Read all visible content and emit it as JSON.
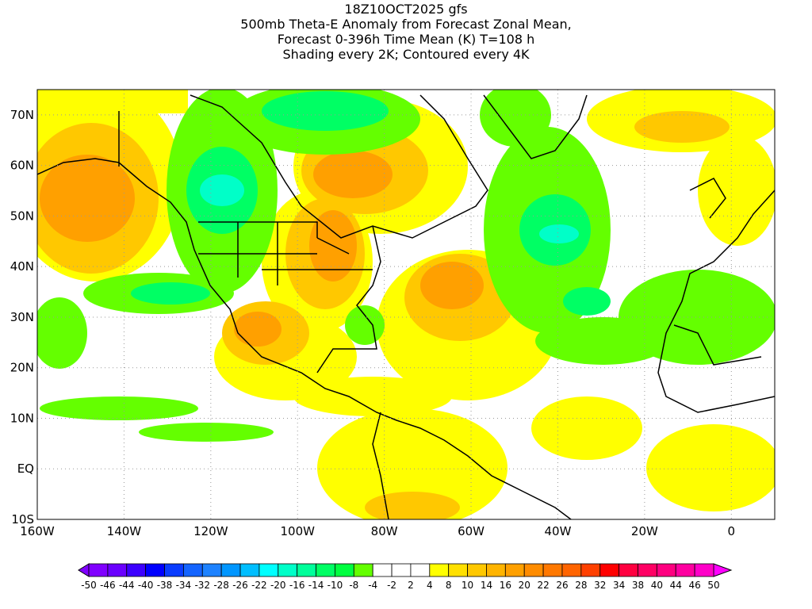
{
  "title": {
    "line1": "18Z10OCT2025 gfs",
    "line2": "500mb Theta-E Anomaly from Forecast Zonal Mean,",
    "line3": "Forecast 0-396h Time Mean (K) T=108 h",
    "line4": "Shading every 2K; Contoured every 4K"
  },
  "map": {
    "lat_labels": [
      "70N",
      "60N",
      "50N",
      "40N",
      "30N",
      "20N",
      "10N",
      "EQ",
      "10S"
    ],
    "lat_values": [
      70,
      60,
      50,
      40,
      30,
      20,
      10,
      0,
      -10
    ],
    "lon_labels": [
      "160W",
      "140W",
      "120W",
      "100W",
      "80W",
      "60W",
      "40W",
      "20W",
      "0"
    ],
    "lon_values": [
      -160,
      -140,
      -120,
      -100,
      -80,
      -60,
      -40,
      -20,
      0
    ],
    "lon_range": [
      -160,
      10
    ],
    "lat_range": [
      -10,
      75
    ]
  },
  "colorbar": {
    "labels": [
      "-50",
      "-46",
      "-44",
      "-40",
      "-38",
      "-34",
      "-32",
      "-28",
      "-26",
      "-22",
      "-20",
      "-16",
      "-14",
      "-10",
      "-8",
      "-4",
      "-2",
      "2",
      "4",
      "8",
      "10",
      "14",
      "16",
      "20",
      "22",
      "26",
      "28",
      "32",
      "34",
      "38",
      "40",
      "44",
      "46",
      "50"
    ],
    "colors": [
      "#8000ff",
      "#6a00ff",
      "#3c00ff",
      "#0000ff",
      "#0a3cff",
      "#1464ff",
      "#1e82ff",
      "#0096ff",
      "#00beff",
      "#00ffff",
      "#00ffc8",
      "#00ff9a",
      "#00ff64",
      "#00ff40",
      "#64ff00",
      "#ffffff",
      "#ffffff",
      "#ffffff",
      "#ffff00",
      "#ffe000",
      "#ffc800",
      "#ffb400",
      "#ffa000",
      "#ff8c00",
      "#ff7800",
      "#ff6400",
      "#ff4000",
      "#ff0000",
      "#ff0040",
      "#ff0064",
      "#ff0080",
      "#ff00a0",
      "#ff00c8"
    ],
    "under_color": "#8000ff",
    "over_color": "#ff00ff"
  }
}
